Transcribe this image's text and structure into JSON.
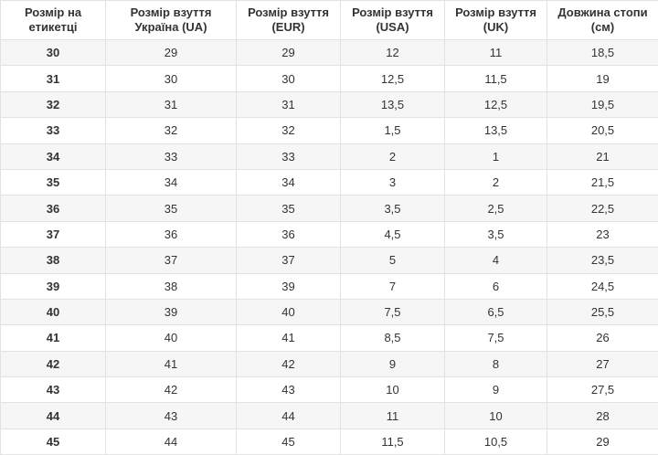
{
  "table": {
    "header": [
      "Розмір на етикетці",
      "Розмір взуття Україна (UA)",
      "Розмір взуття (EUR)",
      "Розмір взуття (USA)",
      "Розмір взуття (UK)",
      "Довжина стопи (см)"
    ],
    "rows": [
      [
        "30",
        "29",
        "29",
        "12",
        "11",
        "18,5"
      ],
      [
        "31",
        "30",
        "30",
        "12,5",
        "11,5",
        "19"
      ],
      [
        "32",
        "31",
        "31",
        "13,5",
        "12,5",
        "19,5"
      ],
      [
        "33",
        "32",
        "32",
        "1,5",
        "13,5",
        "20,5"
      ],
      [
        "34",
        "33",
        "33",
        "2",
        "1",
        "21"
      ],
      [
        "35",
        "34",
        "34",
        "3",
        "2",
        "21,5"
      ],
      [
        "36",
        "35",
        "35",
        "3,5",
        "2,5",
        "22,5"
      ],
      [
        "37",
        "36",
        "36",
        "4,5",
        "3,5",
        "23"
      ],
      [
        "38",
        "37",
        "37",
        "5",
        "4",
        "23,5"
      ],
      [
        "39",
        "38",
        "39",
        "7",
        "6",
        "24,5"
      ],
      [
        "40",
        "39",
        "40",
        "7,5",
        "6,5",
        "25,5"
      ],
      [
        "41",
        "40",
        "41",
        "8,5",
        "7,5",
        "26"
      ],
      [
        "42",
        "41",
        "42",
        "9",
        "8",
        "27"
      ],
      [
        "43",
        "42",
        "43",
        "10",
        "9",
        "27,5"
      ],
      [
        "44",
        "43",
        "44",
        "11",
        "10",
        "28"
      ],
      [
        "45",
        "44",
        "45",
        "11,5",
        "10,5",
        "29"
      ]
    ]
  }
}
